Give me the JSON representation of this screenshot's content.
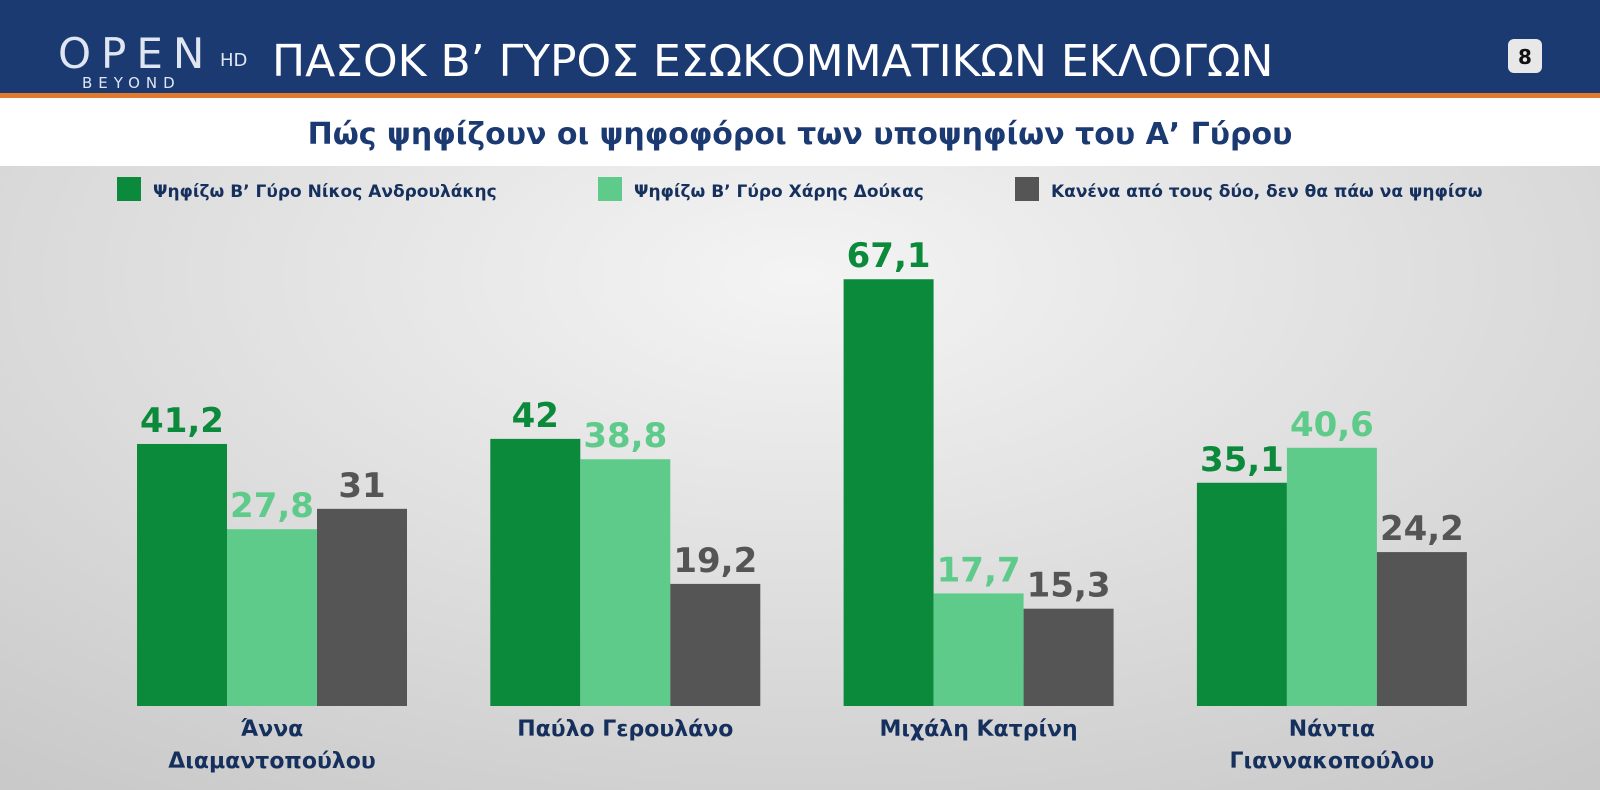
{
  "header": {
    "logo": "OPEN",
    "logo_sub": "BEYOND",
    "logo_hd": "HD",
    "badge": "8"
  },
  "chart_data": {
    "type": "bar",
    "title": "ΠΑΣΟΚ Β’ ΓΥΡΟΣ ΕΣΩΚΟΜΜΑΤΙΚΩΝ ΕΚΛΟΓΩΝ",
    "subtitle": "Πώς ψηφίζουν οι ψηφοφόροι των υποψηφίων του Α’ Γύρου",
    "categories": [
      "Άννα Διαμαντοπούλου",
      "Παύλο Γερουλάνο",
      "Μιχάλη Κατρίνη",
      "Νάντια Γιαννακοπούλου"
    ],
    "series": [
      {
        "name": "Ψηφίζω Β’ Γύρο Νίκος Ανδρουλάκης",
        "color": "#0b8a3c",
        "values": [
          41.2,
          42,
          67.1,
          35.1
        ],
        "value_labels": [
          "41,2",
          "42",
          "67,1",
          "35,1"
        ]
      },
      {
        "name": "Ψηφίζω Β’ Γύρο  Χάρης Δούκας",
        "color": "#5fcb8b",
        "values": [
          27.8,
          38.8,
          17.7,
          40.6
        ],
        "value_labels": [
          "27,8",
          "38,8",
          "17,7",
          "40,6"
        ]
      },
      {
        "name": "Κανένα από τους δύο, δεν θα πάω να ψηφίσω",
        "color": "#555555",
        "values": [
          31,
          19.2,
          15.3,
          24.2
        ],
        "value_labels": [
          "31",
          "19,2",
          "15,3",
          "24,2"
        ]
      }
    ]
  }
}
